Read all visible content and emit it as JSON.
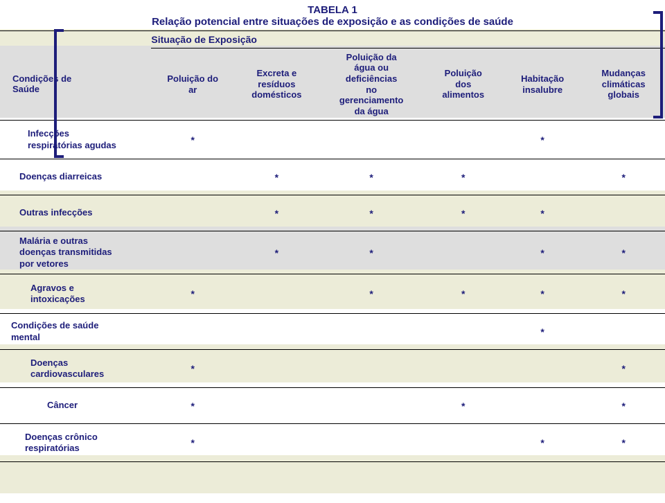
{
  "title": "TABELA 1",
  "subtitle": "Relação potencial entre situações de exposição e as condições de saúde",
  "section_label": "Situação de Exposição",
  "row_header": "Condições de\nSaúde",
  "columns": [
    "Poluição do\nar",
    "Excreta e\nresíduos\ndomésticos",
    "Poluição da\nágua ou\ndeficiências\nno\ngerenciamento\nda água",
    "Poluição\ndos\nalimentos",
    "Habitação\ninsalubre",
    "Mudanças\nclimáticas\nglobais"
  ],
  "rows": [
    {
      "label": "Infecções\nrespiratórias agudas",
      "cells": [
        "*",
        "",
        "",
        "",
        "*",
        ""
      ]
    },
    {
      "label": "Doenças diarreicas",
      "cells": [
        "",
        "*",
        "*",
        "*",
        "",
        "*"
      ]
    },
    {
      "label": "Outras infecções",
      "cells": [
        "",
        "*",
        "*",
        "*",
        "*",
        ""
      ]
    },
    {
      "label": "Malária e outras\ndoenças transmitidas\npor vetores",
      "cells": [
        "",
        "*",
        "*",
        "",
        "*",
        "*"
      ]
    },
    {
      "label": "Agravos e\nintoxicações",
      "cells": [
        "*",
        "",
        "*",
        "*",
        "*",
        "*"
      ]
    },
    {
      "label": "Condições de saúde\nmental",
      "cells": [
        "",
        "",
        "",
        "",
        "*",
        ""
      ]
    },
    {
      "label": "Doenças\ncardiovasculares",
      "cells": [
        "*",
        "",
        "",
        "",
        "",
        "*"
      ]
    },
    {
      "label": "Câncer",
      "cells": [
        "*",
        "",
        "",
        "*",
        "",
        "*"
      ]
    },
    {
      "label": "Doenças crônico\nrespiratórias",
      "cells": [
        "*",
        "",
        "",
        "",
        "*",
        "*"
      ]
    }
  ],
  "stripe_colors": {
    "beige": "#ececd8",
    "grey": "#dedede",
    "white": "#ffffff"
  },
  "text_color": "#1d1d7a"
}
